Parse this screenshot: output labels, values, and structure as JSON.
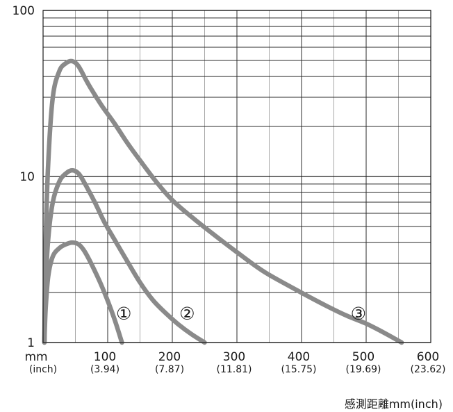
{
  "chart_data": {
    "type": "line",
    "title": "",
    "xlabel": "感測距離mm(inch)",
    "ylabel": "",
    "x_unit": "mm",
    "x_unit_alt": "(inch)",
    "xlim": [
      0,
      600
    ],
    "ylim": [
      1,
      100
    ],
    "y_scale": "log",
    "grid": true,
    "x_ticks": [
      {
        "value": 100,
        "label": "100",
        "sub": "(3.94)"
      },
      {
        "value": 200,
        "label": "200",
        "sub": "(7.87)"
      },
      {
        "value": 300,
        "label": "300",
        "sub": "(11.81)"
      },
      {
        "value": 400,
        "label": "400",
        "sub": "(15.75)"
      },
      {
        "value": 500,
        "label": "500",
        "sub": "(19.69)"
      },
      {
        "value": 600,
        "label": "600",
        "sub": "(23.62)"
      }
    ],
    "y_ticks": [
      {
        "value": 1,
        "label": "1"
      },
      {
        "value": 10,
        "label": "10"
      },
      {
        "value": 100,
        "label": "100"
      }
    ],
    "series": [
      {
        "name": "①",
        "color": "#8a8a8a",
        "label_at": [
          125,
          1.5
        ],
        "points": [
          [
            2,
            1
          ],
          [
            4,
            1.6
          ],
          [
            8,
            2.5
          ],
          [
            15,
            3.3
          ],
          [
            25,
            3.7
          ],
          [
            35,
            3.9
          ],
          [
            45,
            4.0
          ],
          [
            55,
            3.9
          ],
          [
            65,
            3.5
          ],
          [
            80,
            2.7
          ],
          [
            95,
            2.0
          ],
          [
            110,
            1.4
          ],
          [
            122,
            1.0
          ]
        ]
      },
      {
        "name": "②",
        "color": "#8a8a8a",
        "label_at": [
          223,
          1.5
        ],
        "points": [
          [
            2,
            1
          ],
          [
            4,
            2.2
          ],
          [
            8,
            4.2
          ],
          [
            15,
            7.0
          ],
          [
            25,
            9.3
          ],
          [
            35,
            10.4
          ],
          [
            45,
            10.9
          ],
          [
            55,
            10.4
          ],
          [
            65,
            9.0
          ],
          [
            80,
            7.0
          ],
          [
            95,
            5.3
          ],
          [
            110,
            4.2
          ],
          [
            130,
            3.1
          ],
          [
            150,
            2.3
          ],
          [
            170,
            1.8
          ],
          [
            190,
            1.5
          ],
          [
            210,
            1.28
          ],
          [
            230,
            1.12
          ],
          [
            250,
            1.0
          ]
        ]
      },
      {
        "name": "③",
        "color": "#8a8a8a",
        "label_at": [
          488,
          1.5
        ],
        "points": [
          [
            2,
            1
          ],
          [
            4,
            4
          ],
          [
            8,
            12
          ],
          [
            15,
            30
          ],
          [
            25,
            43
          ],
          [
            35,
            48
          ],
          [
            45,
            49.5
          ],
          [
            55,
            46
          ],
          [
            70,
            36
          ],
          [
            90,
            27
          ],
          [
            110,
            21
          ],
          [
            130,
            16
          ],
          [
            150,
            12.5
          ],
          [
            175,
            9.3
          ],
          [
            200,
            7.2
          ],
          [
            230,
            5.7
          ],
          [
            260,
            4.6
          ],
          [
            300,
            3.5
          ],
          [
            340,
            2.7
          ],
          [
            380,
            2.2
          ],
          [
            410,
            1.9
          ],
          [
            440,
            1.65
          ],
          [
            470,
            1.45
          ],
          [
            500,
            1.3
          ],
          [
            525,
            1.16
          ],
          [
            555,
            1.0
          ]
        ]
      }
    ]
  }
}
